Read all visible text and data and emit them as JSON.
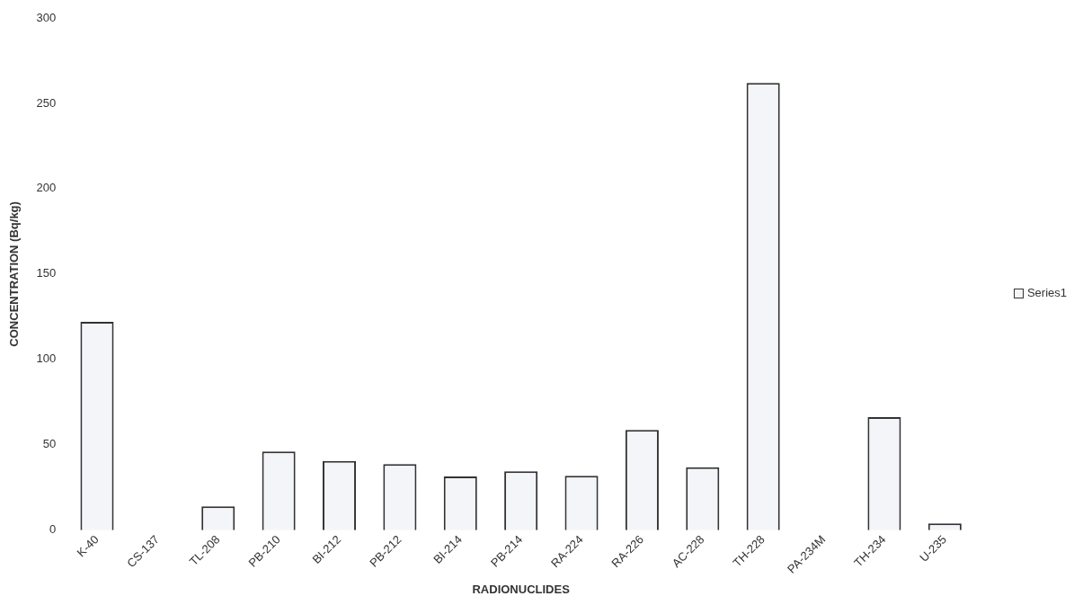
{
  "chart_data": {
    "type": "bar",
    "xlabel": "RADIONUCLIDES",
    "ylabel": "CONCENTRATION (Bq/kg)",
    "categories": [
      "K-40",
      "CS-137",
      "TL-208",
      "PB-210",
      "BI-212",
      "PB-212",
      "BI-214",
      "PB-214",
      "RA-224",
      "RA-226",
      "AC-228",
      "TH-228",
      "PA-234M",
      "TH-234",
      "U-235"
    ],
    "series": [
      {
        "name": "Series1",
        "color": "#f3f5f8",
        "values": [
          122,
          null,
          14,
          46,
          40.5,
          38.7,
          31.4,
          34.5,
          31.8,
          58.7,
          36.8,
          262,
          null,
          66.2,
          4
        ]
      }
    ],
    "ylim": [
      0,
      300
    ],
    "yticks": [
      0,
      50,
      100,
      150,
      200,
      250,
      300
    ],
    "grid": false,
    "legend": "right"
  }
}
